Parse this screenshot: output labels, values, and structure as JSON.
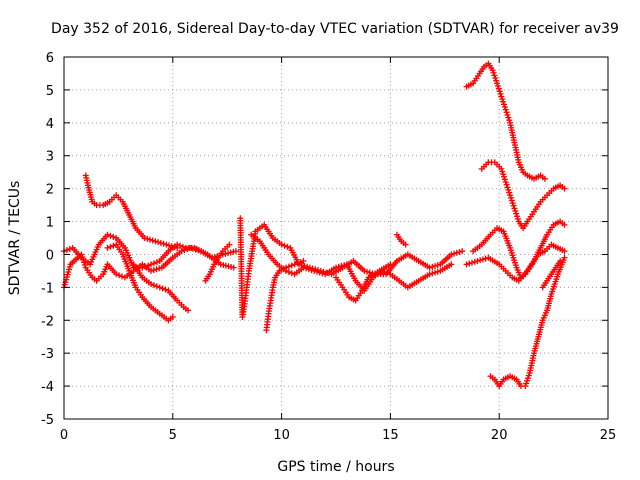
{
  "chart_data": {
    "type": "scatter",
    "title": "Day 352 of 2016, Sidereal Day-to-day VTEC variation (SDTVAR) for receiver av39",
    "xlabel": "GPS time / hours",
    "ylabel": "SDTVAR / TECUs",
    "xlim": [
      0,
      25
    ],
    "ylim": [
      -5,
      6
    ],
    "xticks": [
      0,
      5,
      10,
      15,
      20,
      25
    ],
    "yticks": [
      -5,
      -4,
      -3,
      -2,
      -1,
      0,
      1,
      2,
      3,
      4,
      5,
      6
    ],
    "xtick_labels": [
      "0",
      "5",
      "10",
      "15",
      "20",
      "25"
    ],
    "ytick_labels": [
      "-5",
      "-4",
      "-3",
      "-2",
      "-1",
      "0",
      "1",
      "2",
      "3",
      "4",
      "5",
      "6"
    ],
    "grid": true,
    "marker": "+",
    "color": "#ff0000",
    "series": [
      {
        "x": [
          0.0,
          0.3,
          0.8,
          1.0,
          1.3,
          1.5,
          1.8,
          2.0,
          2.4,
          2.8,
          3.2,
          3.6,
          4.0,
          4.5,
          5.0,
          5.4,
          5.8,
          6.3,
          6.8,
          7.3,
          7.9
        ],
        "y": [
          -1.0,
          -0.3,
          0.0,
          -0.4,
          -0.7,
          -0.8,
          -0.6,
          -0.3,
          -0.6,
          -0.7,
          -0.5,
          -0.3,
          -0.5,
          -0.4,
          -0.1,
          0.1,
          0.2,
          0.1,
          -0.1,
          0.0,
          0.1
        ]
      },
      {
        "x": [
          0.0,
          0.4,
          0.8,
          1.2,
          1.6,
          2.0,
          2.4,
          2.8,
          3.2,
          3.6,
          4.0,
          4.4,
          4.8,
          5.2,
          5.6,
          6.0,
          6.6,
          7.2,
          7.8
        ],
        "y": [
          0.1,
          0.2,
          -0.1,
          -0.3,
          0.3,
          0.6,
          0.5,
          0.2,
          -0.4,
          -0.4,
          -0.3,
          -0.2,
          0.1,
          0.3,
          0.2,
          0.2,
          0.0,
          -0.3,
          -0.4
        ]
      },
      {
        "x": [
          1.0,
          1.1,
          1.3,
          1.5,
          1.8,
          2.1,
          2.4,
          2.7,
          3.0,
          3.3,
          3.7,
          4.2,
          4.7,
          5.2
        ],
        "y": [
          2.4,
          2.1,
          1.6,
          1.5,
          1.5,
          1.6,
          1.8,
          1.6,
          1.2,
          0.8,
          0.5,
          0.4,
          0.3,
          0.2
        ]
      },
      {
        "x": [
          2.0,
          2.4,
          2.7,
          3.0,
          3.3,
          3.6,
          4.0,
          4.4,
          4.8,
          5.0
        ],
        "y": [
          0.2,
          0.3,
          0.0,
          -0.5,
          -1.0,
          -1.3,
          -1.6,
          -1.8,
          -2.0,
          -1.9
        ]
      },
      {
        "x": [
          3.2,
          3.6,
          4.0,
          4.4,
          4.8,
          5.2,
          5.5,
          5.7
        ],
        "y": [
          -0.3,
          -0.7,
          -0.9,
          -1.0,
          -1.1,
          -1.4,
          -1.6,
          -1.7
        ]
      },
      {
        "x": [
          6.5,
          6.7,
          6.9,
          7.1,
          7.3,
          7.6
        ],
        "y": [
          -0.8,
          -0.6,
          -0.3,
          -0.1,
          0.1,
          0.3
        ]
      },
      {
        "x": [
          8.1,
          8.2,
          8.3,
          8.4,
          8.5,
          8.8,
          9.2,
          9.6,
          10.0,
          10.4,
          10.8,
          11.3,
          11.8,
          12.3,
          12.8,
          13.3,
          13.8,
          14.3,
          14.8,
          15.3,
          15.8,
          16.3,
          16.8,
          17.3,
          17.8,
          18.3
        ],
        "y": [
          1.1,
          -1.9,
          -1.5,
          -1.0,
          -0.5,
          0.7,
          0.9,
          0.5,
          0.3,
          0.2,
          -0.3,
          -0.4,
          -0.5,
          -0.6,
          -0.4,
          -0.2,
          -0.5,
          -0.6,
          -0.6,
          -0.2,
          0.0,
          -0.2,
          -0.4,
          -0.3,
          0.0,
          0.1
        ]
      },
      {
        "x": [
          8.6,
          9.0,
          9.4,
          9.8,
          10.2,
          10.6,
          11.0,
          11.5,
          12.0,
          12.5,
          13.0,
          13.4,
          13.8,
          14.2,
          14.6,
          15.0,
          15.4,
          15.8,
          16.3,
          16.8,
          17.3,
          17.8
        ],
        "y": [
          0.6,
          0.4,
          0.0,
          -0.3,
          -0.5,
          -0.6,
          -0.4,
          -0.5,
          -0.6,
          -0.4,
          -0.3,
          -0.8,
          -1.1,
          -0.7,
          -0.5,
          -0.6,
          -0.8,
          -1.0,
          -0.8,
          -0.6,
          -0.5,
          -0.3
        ]
      },
      {
        "x": [
          9.3,
          9.4,
          9.5,
          9.6,
          9.7,
          9.9,
          10.2,
          10.6,
          11.0
        ],
        "y": [
          -2.3,
          -1.8,
          -1.4,
          -1.0,
          -0.7,
          -0.5,
          -0.4,
          -0.3,
          -0.2
        ]
      },
      {
        "x": [
          12.5,
          12.8,
          13.1,
          13.4,
          13.7,
          14.0,
          14.5,
          15.0
        ],
        "y": [
          -0.7,
          -1.0,
          -1.3,
          -1.4,
          -1.1,
          -0.7,
          -0.5,
          -0.3
        ]
      },
      {
        "x": [
          15.3,
          15.5,
          15.7
        ],
        "y": [
          0.6,
          0.4,
          0.3
        ]
      },
      {
        "x": [
          18.5,
          18.8,
          19.1,
          19.3,
          19.5,
          19.7,
          19.9,
          20.1,
          20.3,
          20.5,
          20.7,
          20.9,
          21.1,
          21.3,
          21.6,
          21.9,
          22.1
        ],
        "y": [
          5.1,
          5.2,
          5.5,
          5.7,
          5.8,
          5.6,
          5.2,
          4.8,
          4.4,
          4.0,
          3.4,
          2.8,
          2.5,
          2.4,
          2.3,
          2.4,
          2.3
        ]
      },
      {
        "x": [
          19.2,
          19.5,
          19.8,
          20.1,
          20.3,
          20.5,
          20.7,
          20.9,
          21.1,
          21.3,
          21.6,
          21.9,
          22.2,
          22.5,
          22.8,
          23.0
        ],
        "y": [
          2.6,
          2.8,
          2.8,
          2.6,
          2.2,
          1.8,
          1.4,
          1.0,
          0.8,
          1.0,
          1.3,
          1.6,
          1.8,
          2.0,
          2.1,
          2.0
        ]
      },
      {
        "x": [
          18.8,
          19.2,
          19.6,
          19.9,
          20.2,
          20.5,
          20.8,
          21.0,
          21.3,
          21.6,
          21.9,
          22.2,
          22.5,
          22.8,
          23.0
        ],
        "y": [
          0.1,
          0.3,
          0.6,
          0.8,
          0.7,
          0.2,
          -0.4,
          -0.7,
          -0.5,
          -0.2,
          0.2,
          0.6,
          0.9,
          1.0,
          0.9
        ]
      },
      {
        "x": [
          18.5,
          19.0,
          19.5,
          20.0,
          20.3,
          20.6,
          20.9,
          21.2,
          21.5,
          21.8,
          22.1,
          22.4,
          22.7,
          23.0
        ],
        "y": [
          -0.3,
          -0.2,
          -0.1,
          -0.3,
          -0.5,
          -0.7,
          -0.8,
          -0.6,
          -0.3,
          0.0,
          0.1,
          0.3,
          0.2,
          0.1
        ]
      },
      {
        "x": [
          19.6,
          19.8,
          20.0,
          20.2,
          20.5,
          20.8,
          21.0,
          21.2,
          21.4,
          21.6,
          21.8,
          22.0,
          22.2,
          22.4,
          22.7,
          23.0
        ],
        "y": [
          -3.7,
          -3.8,
          -4.0,
          -3.8,
          -3.7,
          -3.8,
          -4.0,
          -4.0,
          -3.6,
          -3.0,
          -2.5,
          -2.0,
          -1.7,
          -1.2,
          -0.6,
          -0.1
        ]
      },
      {
        "x": [
          22.0,
          22.2,
          22.4,
          22.6,
          22.8
        ],
        "y": [
          -1.0,
          -0.8,
          -0.6,
          -0.4,
          -0.2
        ]
      }
    ]
  }
}
